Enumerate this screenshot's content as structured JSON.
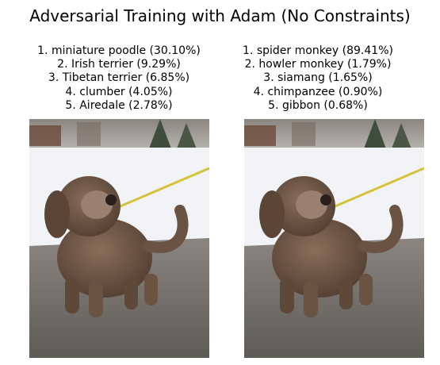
{
  "figure": {
    "title": "Adversarial Training with Adam (No Constraints)"
  },
  "panels": [
    {
      "predictions": [
        "1. miniature poodle (30.10%)",
        "2. Irish terrier (9.29%)",
        "3. Tibetan terrier (6.85%)",
        "4. clumber (4.05%)",
        "5. Airedale (2.78%)"
      ]
    },
    {
      "predictions": [
        "1. spider monkey (89.41%)",
        "2. howler monkey (1.79%)",
        "3. siamang (1.65%)",
        "4. chimpanzee (0.90%)",
        "5. gibbon (0.68%)"
      ]
    }
  ],
  "colors": {
    "background": "#ffffff",
    "snow": "#f2f3f6",
    "pavement": "#6f6b66",
    "dog_fur": "#6b5343",
    "leash": "#d6c23a"
  }
}
